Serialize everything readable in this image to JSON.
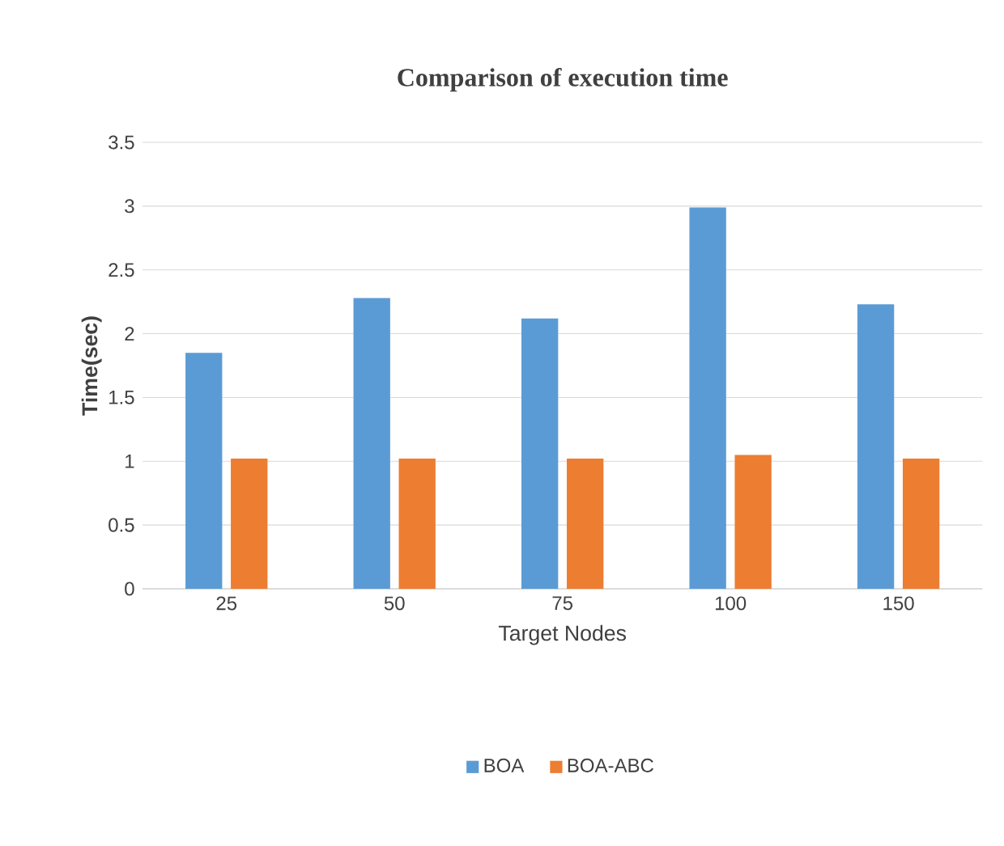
{
  "chart_data": {
    "type": "bar",
    "title": "Comparison of execution time",
    "xlabel": "Target Nodes",
    "ylabel": "Time(sec)",
    "categories": [
      "25",
      "50",
      "75",
      "100",
      "150"
    ],
    "series": [
      {
        "name": "BOA",
        "color": "#5b9bd5",
        "values": [
          1.85,
          2.28,
          2.12,
          2.99,
          2.23
        ]
      },
      {
        "name": "BOA-ABC",
        "color": "#ed7d31",
        "values": [
          1.02,
          1.02,
          1.02,
          1.05,
          1.02
        ]
      }
    ],
    "ylim": [
      0,
      3.5
    ],
    "yticks": [
      0,
      0.5,
      1,
      1.5,
      2,
      2.5,
      3,
      3.5
    ],
    "grid": "y",
    "legend": "bottom"
  }
}
